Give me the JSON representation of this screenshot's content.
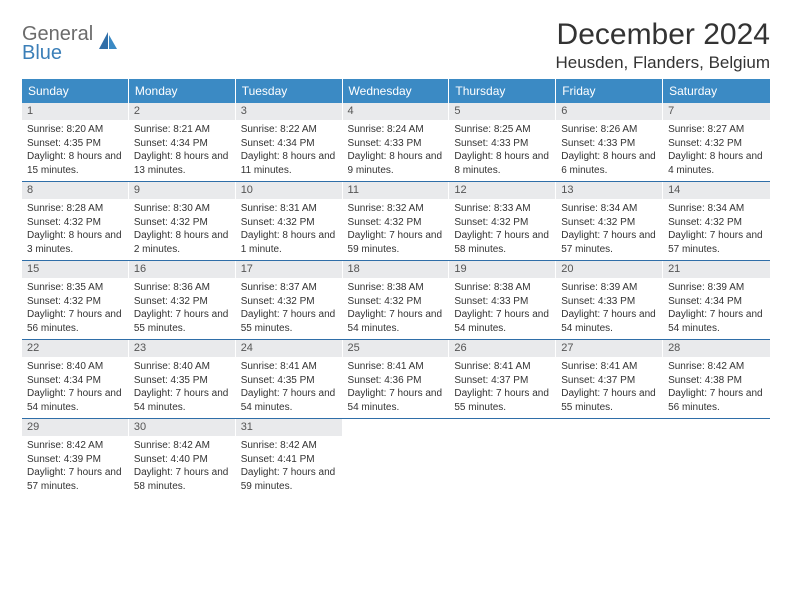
{
  "logo": {
    "word1": "General",
    "word2": "Blue"
  },
  "title": "December 2024",
  "location": "Heusden, Flanders, Belgium",
  "colors": {
    "header_bg": "#3b8ac4",
    "header_text": "#ffffff",
    "daynum_bg": "#e9eaec",
    "rule": "#2f6ea8",
    "logo_gray": "#6b6b6b",
    "logo_blue": "#3b7fb8"
  },
  "weekdays": [
    "Sunday",
    "Monday",
    "Tuesday",
    "Wednesday",
    "Thursday",
    "Friday",
    "Saturday"
  ],
  "weeks": [
    [
      {
        "n": "1",
        "sr": "Sunrise: 8:20 AM",
        "ss": "Sunset: 4:35 PM",
        "dl": "Daylight: 8 hours and 15 minutes."
      },
      {
        "n": "2",
        "sr": "Sunrise: 8:21 AM",
        "ss": "Sunset: 4:34 PM",
        "dl": "Daylight: 8 hours and 13 minutes."
      },
      {
        "n": "3",
        "sr": "Sunrise: 8:22 AM",
        "ss": "Sunset: 4:34 PM",
        "dl": "Daylight: 8 hours and 11 minutes."
      },
      {
        "n": "4",
        "sr": "Sunrise: 8:24 AM",
        "ss": "Sunset: 4:33 PM",
        "dl": "Daylight: 8 hours and 9 minutes."
      },
      {
        "n": "5",
        "sr": "Sunrise: 8:25 AM",
        "ss": "Sunset: 4:33 PM",
        "dl": "Daylight: 8 hours and 8 minutes."
      },
      {
        "n": "6",
        "sr": "Sunrise: 8:26 AM",
        "ss": "Sunset: 4:33 PM",
        "dl": "Daylight: 8 hours and 6 minutes."
      },
      {
        "n": "7",
        "sr": "Sunrise: 8:27 AM",
        "ss": "Sunset: 4:32 PM",
        "dl": "Daylight: 8 hours and 4 minutes."
      }
    ],
    [
      {
        "n": "8",
        "sr": "Sunrise: 8:28 AM",
        "ss": "Sunset: 4:32 PM",
        "dl": "Daylight: 8 hours and 3 minutes."
      },
      {
        "n": "9",
        "sr": "Sunrise: 8:30 AM",
        "ss": "Sunset: 4:32 PM",
        "dl": "Daylight: 8 hours and 2 minutes."
      },
      {
        "n": "10",
        "sr": "Sunrise: 8:31 AM",
        "ss": "Sunset: 4:32 PM",
        "dl": "Daylight: 8 hours and 1 minute."
      },
      {
        "n": "11",
        "sr": "Sunrise: 8:32 AM",
        "ss": "Sunset: 4:32 PM",
        "dl": "Daylight: 7 hours and 59 minutes."
      },
      {
        "n": "12",
        "sr": "Sunrise: 8:33 AM",
        "ss": "Sunset: 4:32 PM",
        "dl": "Daylight: 7 hours and 58 minutes."
      },
      {
        "n": "13",
        "sr": "Sunrise: 8:34 AM",
        "ss": "Sunset: 4:32 PM",
        "dl": "Daylight: 7 hours and 57 minutes."
      },
      {
        "n": "14",
        "sr": "Sunrise: 8:34 AM",
        "ss": "Sunset: 4:32 PM",
        "dl": "Daylight: 7 hours and 57 minutes."
      }
    ],
    [
      {
        "n": "15",
        "sr": "Sunrise: 8:35 AM",
        "ss": "Sunset: 4:32 PM",
        "dl": "Daylight: 7 hours and 56 minutes."
      },
      {
        "n": "16",
        "sr": "Sunrise: 8:36 AM",
        "ss": "Sunset: 4:32 PM",
        "dl": "Daylight: 7 hours and 55 minutes."
      },
      {
        "n": "17",
        "sr": "Sunrise: 8:37 AM",
        "ss": "Sunset: 4:32 PM",
        "dl": "Daylight: 7 hours and 55 minutes."
      },
      {
        "n": "18",
        "sr": "Sunrise: 8:38 AM",
        "ss": "Sunset: 4:32 PM",
        "dl": "Daylight: 7 hours and 54 minutes."
      },
      {
        "n": "19",
        "sr": "Sunrise: 8:38 AM",
        "ss": "Sunset: 4:33 PM",
        "dl": "Daylight: 7 hours and 54 minutes."
      },
      {
        "n": "20",
        "sr": "Sunrise: 8:39 AM",
        "ss": "Sunset: 4:33 PM",
        "dl": "Daylight: 7 hours and 54 minutes."
      },
      {
        "n": "21",
        "sr": "Sunrise: 8:39 AM",
        "ss": "Sunset: 4:34 PM",
        "dl": "Daylight: 7 hours and 54 minutes."
      }
    ],
    [
      {
        "n": "22",
        "sr": "Sunrise: 8:40 AM",
        "ss": "Sunset: 4:34 PM",
        "dl": "Daylight: 7 hours and 54 minutes."
      },
      {
        "n": "23",
        "sr": "Sunrise: 8:40 AM",
        "ss": "Sunset: 4:35 PM",
        "dl": "Daylight: 7 hours and 54 minutes."
      },
      {
        "n": "24",
        "sr": "Sunrise: 8:41 AM",
        "ss": "Sunset: 4:35 PM",
        "dl": "Daylight: 7 hours and 54 minutes."
      },
      {
        "n": "25",
        "sr": "Sunrise: 8:41 AM",
        "ss": "Sunset: 4:36 PM",
        "dl": "Daylight: 7 hours and 54 minutes."
      },
      {
        "n": "26",
        "sr": "Sunrise: 8:41 AM",
        "ss": "Sunset: 4:37 PM",
        "dl": "Daylight: 7 hours and 55 minutes."
      },
      {
        "n": "27",
        "sr": "Sunrise: 8:41 AM",
        "ss": "Sunset: 4:37 PM",
        "dl": "Daylight: 7 hours and 55 minutes."
      },
      {
        "n": "28",
        "sr": "Sunrise: 8:42 AM",
        "ss": "Sunset: 4:38 PM",
        "dl": "Daylight: 7 hours and 56 minutes."
      }
    ],
    [
      {
        "n": "29",
        "sr": "Sunrise: 8:42 AM",
        "ss": "Sunset: 4:39 PM",
        "dl": "Daylight: 7 hours and 57 minutes."
      },
      {
        "n": "30",
        "sr": "Sunrise: 8:42 AM",
        "ss": "Sunset: 4:40 PM",
        "dl": "Daylight: 7 hours and 58 minutes."
      },
      {
        "n": "31",
        "sr": "Sunrise: 8:42 AM",
        "ss": "Sunset: 4:41 PM",
        "dl": "Daylight: 7 hours and 59 minutes."
      },
      null,
      null,
      null,
      null
    ]
  ]
}
